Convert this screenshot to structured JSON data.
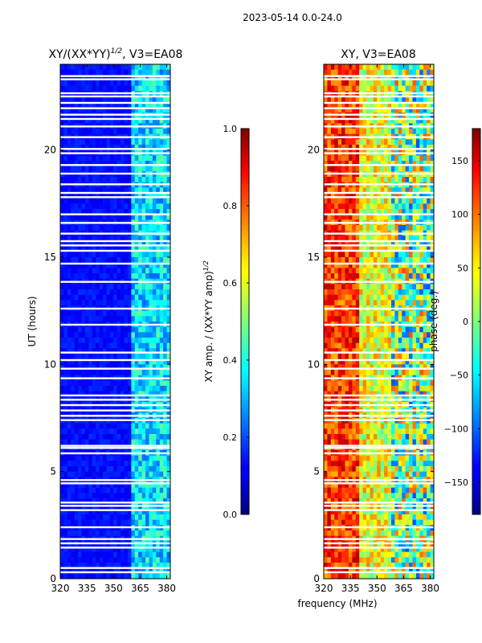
{
  "figure": {
    "suptitle": "2023-05-14 0.0-24.0",
    "shared_xlabel": "frequency (MHz)"
  },
  "chart_data": [
    {
      "type": "heatmap",
      "title_main": "XY/(XX*YY)",
      "title_sup": "1/2",
      "title_rest": ", V3=EA08",
      "xlabel": "",
      "ylabel": "UT (hours)",
      "xlim": [
        320,
        382
      ],
      "ylim": [
        0,
        24
      ],
      "xticks": [
        "320",
        "335",
        "350",
        "365",
        "380"
      ],
      "xtick_values": [
        320,
        335,
        350,
        365,
        380
      ],
      "yticks": [
        "0",
        "5",
        "10",
        "15",
        "20"
      ],
      "ytick_values": [
        0,
        5,
        10,
        15,
        20
      ],
      "colorbar": {
        "label": "XY amp. / (XX*YY amp)",
        "label_sup": "1/2",
        "range": [
          0.0,
          1.0
        ],
        "ticks": [
          "0.0",
          "0.2",
          "0.4",
          "0.6",
          "0.8",
          "1.0"
        ],
        "tick_values": [
          0.0,
          0.2,
          0.4,
          0.6,
          0.8,
          1.0
        ]
      },
      "colormap": "jet",
      "flagged_ut_hours": [
        0.3,
        0.5,
        1.45,
        1.65,
        1.85,
        2.4,
        3.2,
        3.4,
        3.55,
        4.45,
        4.6,
        5.85,
        6.1,
        6.2,
        7.4,
        7.6,
        7.85,
        8.1,
        8.35,
        8.55,
        9.35,
        9.8,
        10.2,
        10.55,
        11.85,
        12.6,
        13.85,
        14.7,
        15.3,
        15.55,
        15.75,
        16.1,
        16.6,
        17.0,
        17.8,
        18.0,
        18.4,
        18.9,
        19.3,
        19.85,
        20.05,
        20.6,
        21.1,
        21.45,
        21.65,
        21.95,
        22.2,
        22.5,
        22.65,
        23.3,
        23.45
      ]
    },
    {
      "type": "heatmap",
      "title": "XY, V3=EA08",
      "xlabel": "",
      "ylabel": "",
      "xlim": [
        320,
        382
      ],
      "ylim": [
        0,
        24
      ],
      "xticks": [
        "320",
        "335",
        "350",
        "365",
        "380"
      ],
      "xtick_values": [
        320,
        335,
        350,
        365,
        380
      ],
      "yticks": [
        "0",
        "5",
        "10",
        "15",
        "20"
      ],
      "ytick_values": [
        0,
        5,
        10,
        15,
        20
      ],
      "colorbar": {
        "label": "phase (deg.)",
        "range": [
          -180,
          180
        ],
        "ticks": [
          "150",
          "100",
          "50",
          "0",
          "−50",
          "−100",
          "−150"
        ],
        "tick_values": [
          150,
          100,
          50,
          0,
          -50,
          -100,
          -150
        ]
      },
      "colormap": "jet",
      "flagged_ut_hours": [
        0.3,
        0.5,
        1.45,
        1.65,
        1.85,
        2.4,
        3.2,
        3.4,
        3.55,
        4.45,
        4.6,
        5.85,
        6.1,
        6.2,
        7.4,
        7.6,
        7.85,
        8.1,
        8.35,
        8.55,
        9.35,
        9.8,
        10.2,
        10.55,
        11.85,
        12.6,
        13.85,
        14.7,
        15.3,
        15.55,
        15.75,
        16.1,
        16.6,
        17.0,
        17.8,
        18.0,
        18.4,
        18.9,
        19.3,
        19.85,
        20.05,
        20.6,
        21.1,
        21.45,
        21.65,
        21.95,
        22.2,
        22.5,
        22.65,
        23.3,
        23.45
      ]
    }
  ]
}
